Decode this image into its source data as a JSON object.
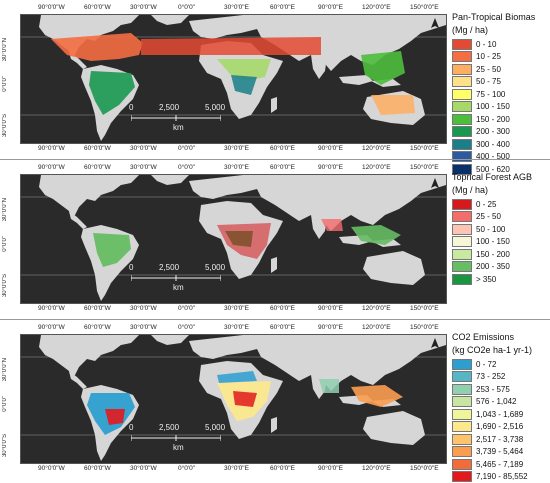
{
  "panels": [
    {
      "legend_title_1": "Pan-Tropical Biomas",
      "legend_title_2": "(Mg / ha)",
      "legend": [
        {
          "label": "0 - 10",
          "color": "#e34a33"
        },
        {
          "label": "10 - 25",
          "color": "#f46d43"
        },
        {
          "label": "25 - 50",
          "color": "#fdae61"
        },
        {
          "label": "50 - 75",
          "color": "#fee08b"
        },
        {
          "label": "75 - 100",
          "color": "#ffff66"
        },
        {
          "label": "100 - 150",
          "color": "#a6d96a"
        },
        {
          "label": "150 - 200",
          "color": "#4dbd3c"
        },
        {
          "label": "200 - 300",
          "color": "#1a9850"
        },
        {
          "label": "300 - 400",
          "color": "#1a7f8a"
        },
        {
          "label": "400 - 500",
          "color": "#2c5aa0"
        },
        {
          "label": "500 - 620",
          "color": "#08306b"
        }
      ],
      "scale": {
        "s0": "0",
        "s1": "2,500",
        "s2": "5,000",
        "unit": "km"
      }
    },
    {
      "legend_title_1": "Toprical Forest AGB",
      "legend_title_2": "(Mg / ha)",
      "legend": [
        {
          "label": "0 - 25",
          "color": "#d7191c"
        },
        {
          "label": "25 - 50",
          "color": "#f46d6d"
        },
        {
          "label": "50 - 100",
          "color": "#fbc4b4"
        },
        {
          "label": "100 - 150",
          "color": "#f7f7d8"
        },
        {
          "label": "150 - 200",
          "color": "#c7e9a0"
        },
        {
          "label": "200 - 350",
          "color": "#66bd63"
        },
        {
          "label": "> 350",
          "color": "#1a9641"
        }
      ],
      "scale": {
        "s0": "0",
        "s1": "2,500",
        "s2": "5,000",
        "unit": "km"
      }
    },
    {
      "legend_title_1": "CO2 Emissions",
      "legend_title_2": "(kg CO2e ha-1 yr-1)",
      "legend": [
        {
          "label": "0 - 72",
          "color": "#2c9fd0"
        },
        {
          "label": "73 - 252",
          "color": "#56b6c6"
        },
        {
          "label": "253 - 575",
          "color": "#92cfb0"
        },
        {
          "label": "576 - 1,042",
          "color": "#c6e6a1"
        },
        {
          "label": "1,043 - 1,689",
          "color": "#eef59a"
        },
        {
          "label": "1,690 - 2,516",
          "color": "#fde98b"
        },
        {
          "label": "2,517 - 3,738",
          "color": "#fdc46b"
        },
        {
          "label": "3,739 - 5,464",
          "color": "#fb9d50"
        },
        {
          "label": "5,465 - 7,189",
          "color": "#f26b3a"
        },
        {
          "label": "7,190 - 85,552",
          "color": "#e31a1c"
        }
      ],
      "scale": {
        "s0": "0",
        "s1": "2,500",
        "s2": "5,000",
        "unit": "km"
      }
    }
  ],
  "lon_labels": [
    "90°0'0\"W",
    "60°0'0\"W",
    "30°0'0\"W",
    "0°0'0\"",
    "30°0'0\"E",
    "60°0'0\"E",
    "90°0'0\"E",
    "120°0'0\"E",
    "150°0'0\"E"
  ],
  "lat_labels": [
    "30°0'0\"N",
    "0°0'0\"",
    "30°0'0\"S"
  ],
  "land_color": "#d6d6d6",
  "ocean_color": "#2a2a2a"
}
